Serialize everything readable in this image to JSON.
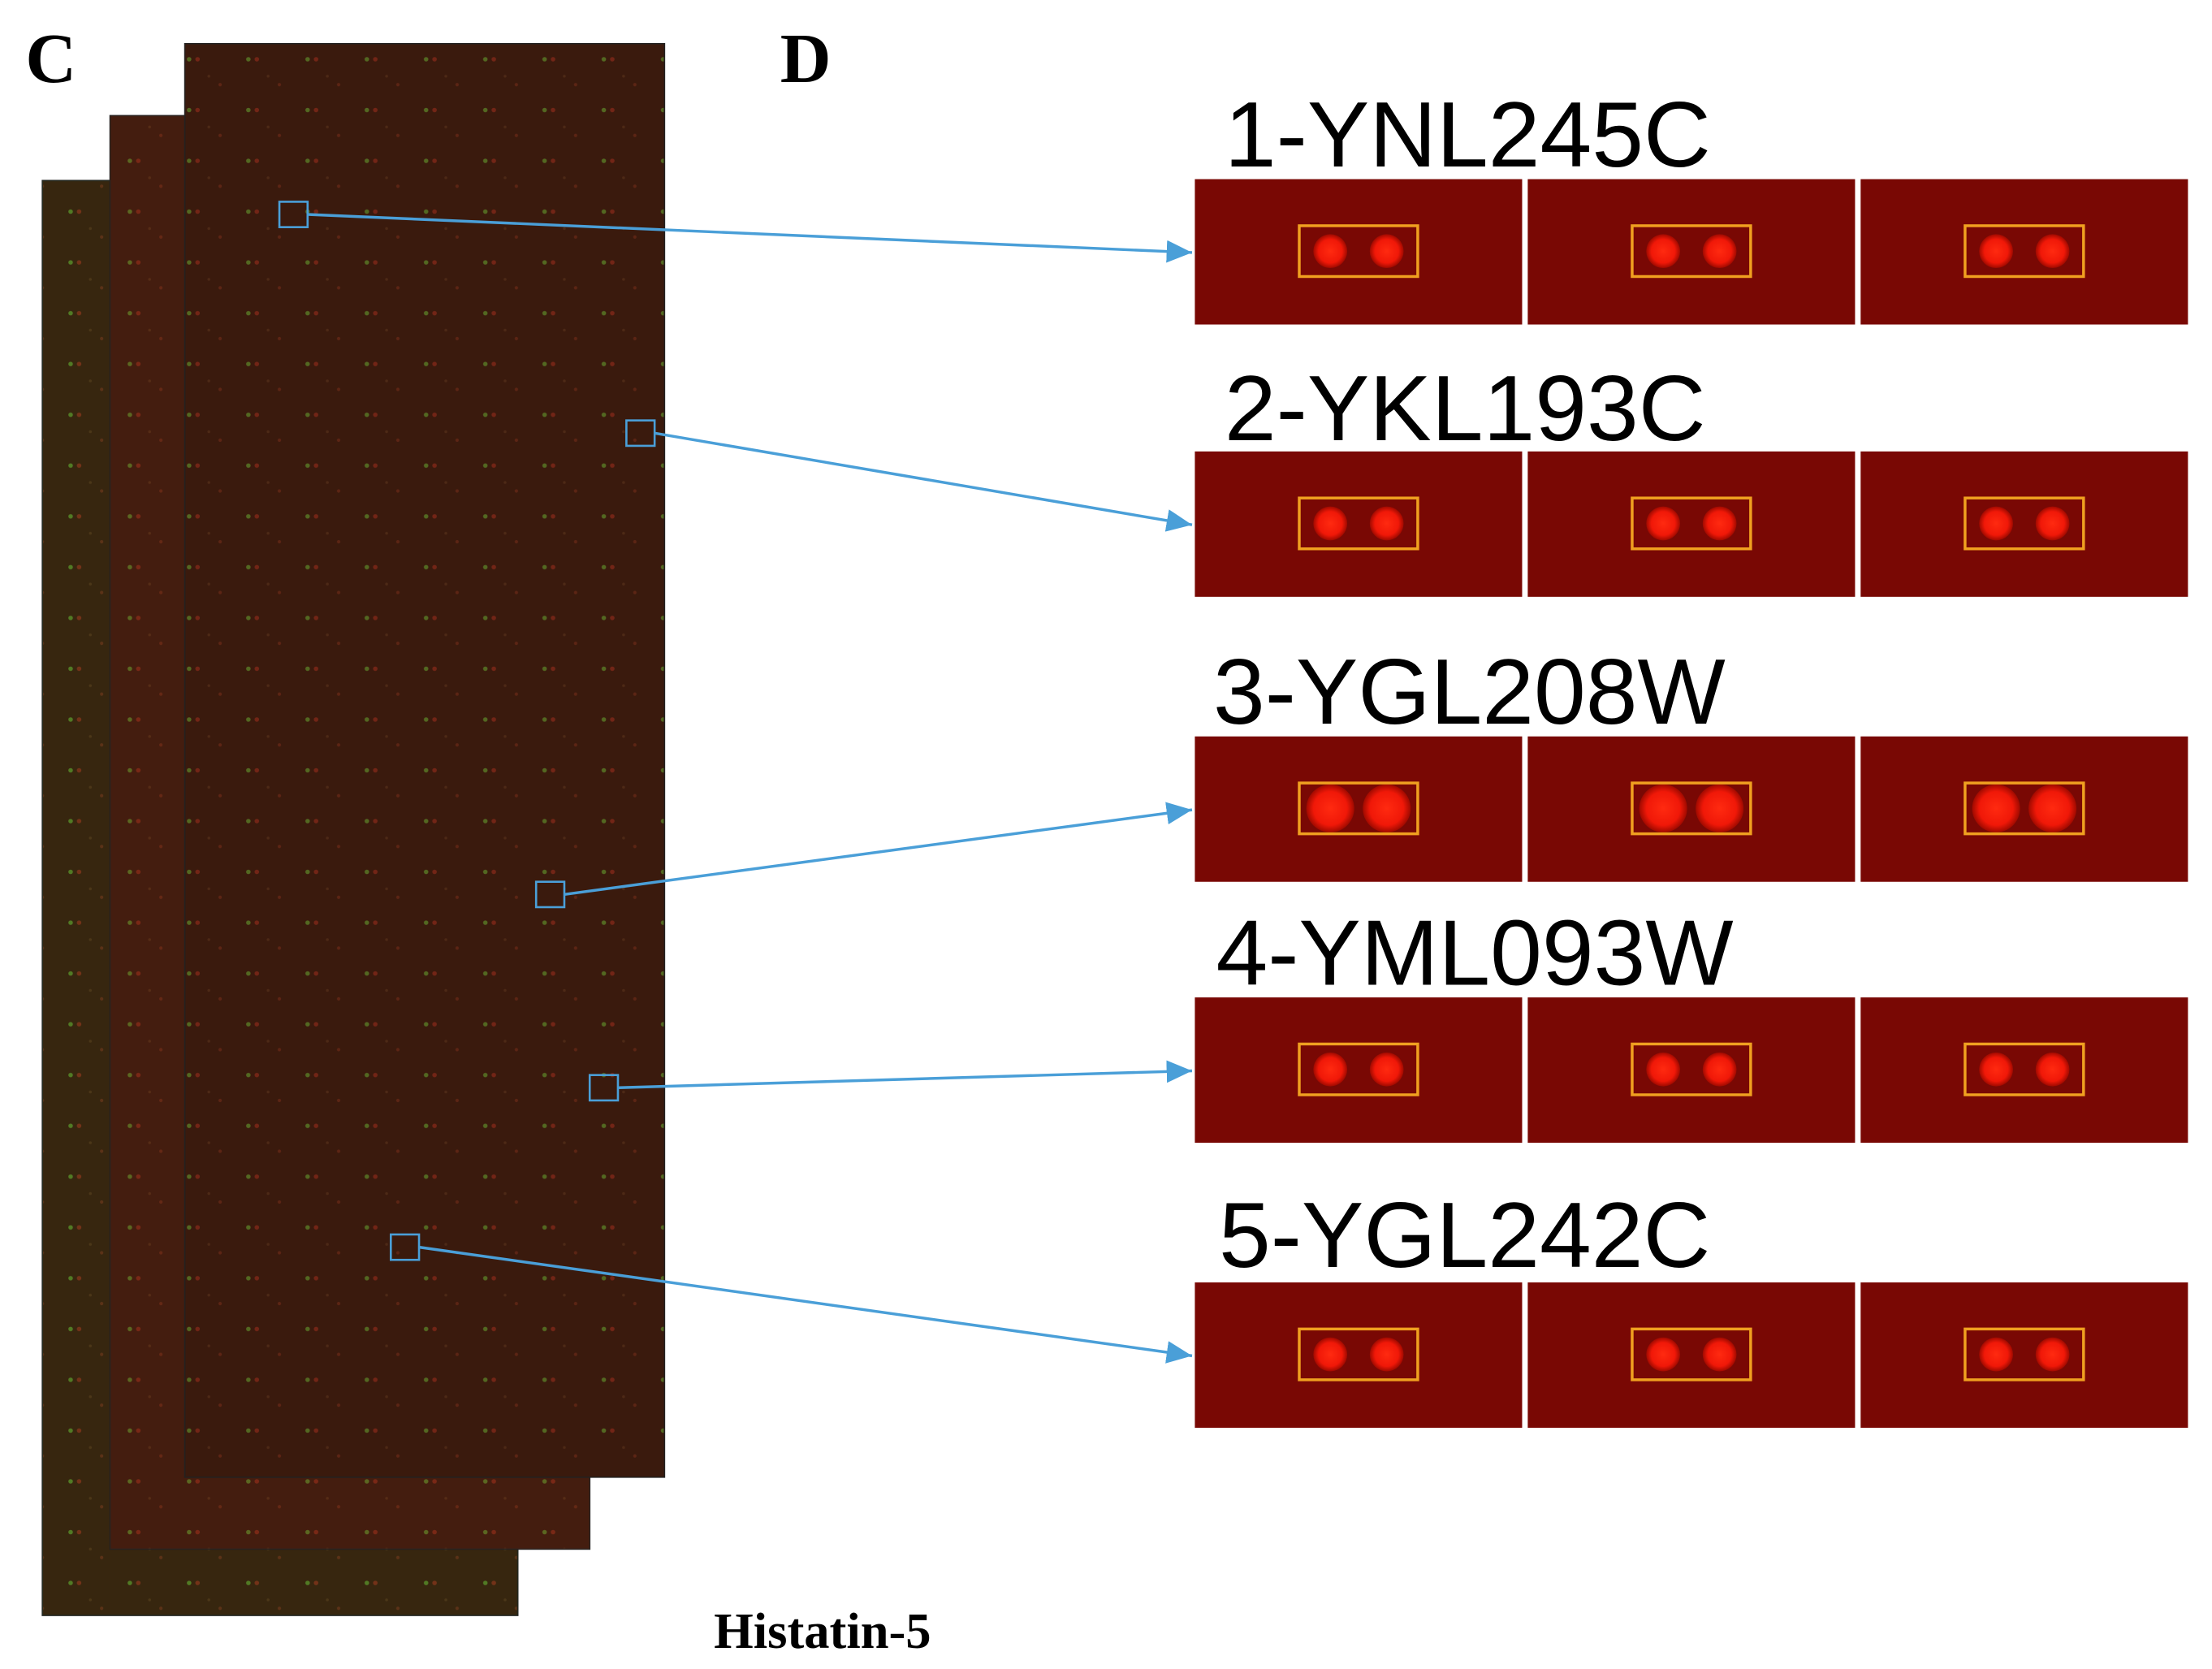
{
  "panel_c": "C",
  "panel_d": "D",
  "caption": "Histatin-5",
  "hits": [
    {
      "label": "1-YNL245C"
    },
    {
      "label": "2-YKL193C"
    },
    {
      "label": "3-YGL208W"
    },
    {
      "label": "4-YML093W"
    },
    {
      "label": "5-YGL242C"
    }
  ]
}
